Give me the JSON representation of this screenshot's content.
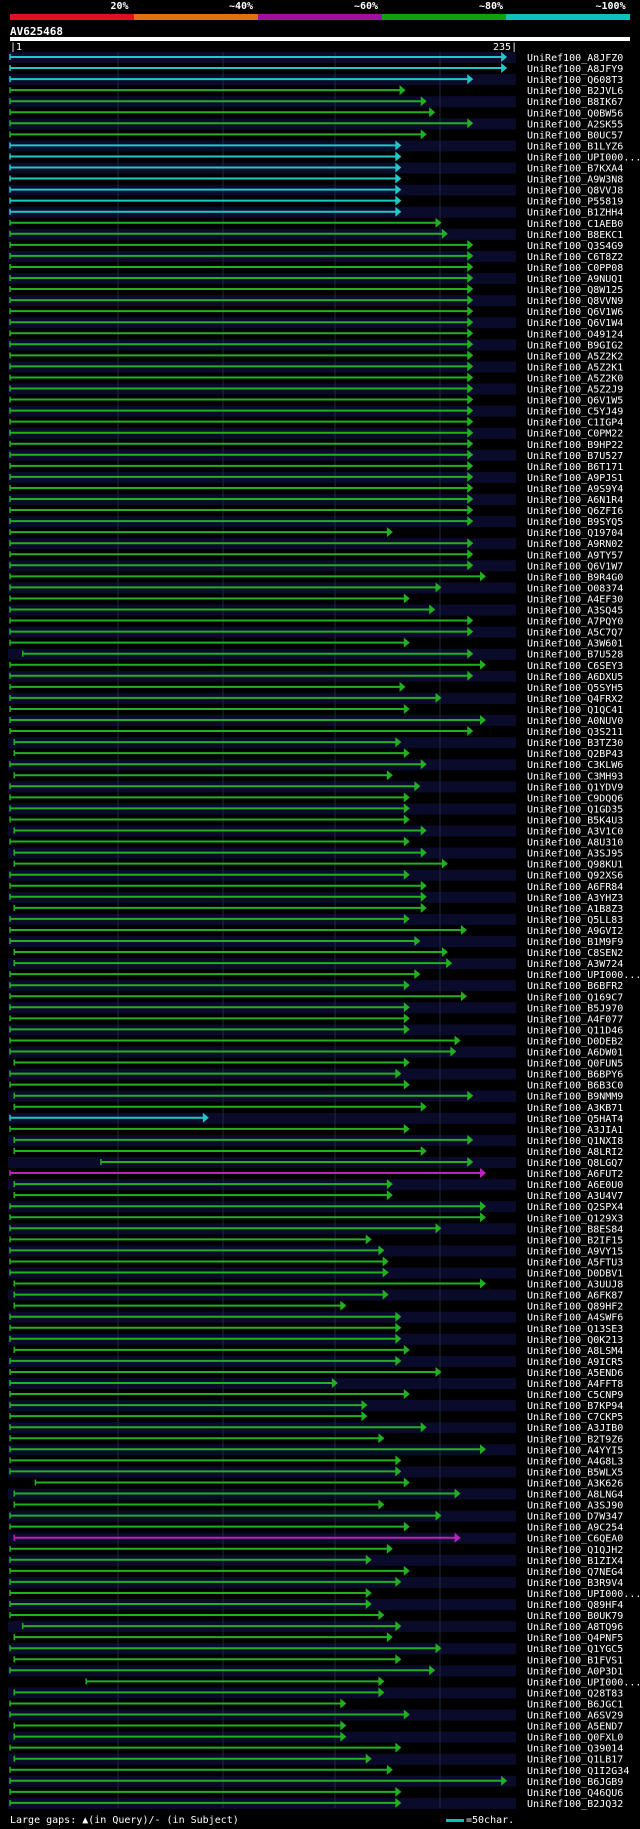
{
  "query": {
    "id": "AV625468",
    "start": "1",
    "end": "235"
  },
  "legend": [
    {
      "label": "20%",
      "color": "#e0101e"
    },
    {
      "label": "~40%",
      "color": "#e07010"
    },
    {
      "label": "~60%",
      "color": "#a0109a"
    },
    {
      "label": "~80%",
      "color": "#10a010"
    },
    {
      "label": "~100%",
      "color": "#10c0c0"
    }
  ],
  "colors": {
    "cyan": "#21c8c8",
    "green": "#22b022",
    "magenta": "#c020c0",
    "background": "#000000",
    "grid": "#1e2a3c",
    "row_stripe": "#0a0a2a"
  },
  "footer": {
    "gaps_text": "Large gaps: ▲(in Query)/- (in Subject)",
    "scale_text": "=50char."
  },
  "hits": [
    {
      "name": "UniRef100_A8JFZ0",
      "start": 1,
      "end": 236,
      "color": "cyan"
    },
    {
      "name": "UniRef100_A8JFY9",
      "start": 1,
      "end": 236,
      "color": "cyan"
    },
    {
      "name": "UniRef100_Q608T3",
      "start": 1,
      "end": 220,
      "color": "cyan"
    },
    {
      "name": "UniRef100_B2JVL6",
      "start": 1,
      "end": 188,
      "color": "green"
    },
    {
      "name": "UniRef100_B8IK67",
      "start": 1,
      "end": 198,
      "color": "green"
    },
    {
      "name": "UniRef100_Q0BW56",
      "start": 1,
      "end": 202,
      "color": "green"
    },
    {
      "name": "UniRef100_A2SK55",
      "start": 1,
      "end": 220,
      "color": "green"
    },
    {
      "name": "UniRef100_B0UC57",
      "start": 1,
      "end": 198,
      "color": "green"
    },
    {
      "name": "UniRef100_B1LYZ6",
      "start": 1,
      "end": 186,
      "color": "cyan"
    },
    {
      "name": "UniRef100_UPI000...",
      "start": 1,
      "end": 186,
      "color": "cyan"
    },
    {
      "name": "UniRef100_B7KXA4",
      "start": 1,
      "end": 186,
      "color": "cyan"
    },
    {
      "name": "UniRef100_A9W3N8",
      "start": 1,
      "end": 186,
      "color": "cyan"
    },
    {
      "name": "UniRef100_Q8VVJ8",
      "start": 1,
      "end": 186,
      "color": "cyan"
    },
    {
      "name": "UniRef100_P55819",
      "start": 1,
      "end": 186,
      "color": "cyan"
    },
    {
      "name": "UniRef100_B1ZHH4",
      "start": 1,
      "end": 186,
      "color": "cyan"
    },
    {
      "name": "UniRef100_C1AEB0",
      "start": 1,
      "end": 205,
      "color": "green"
    },
    {
      "name": "UniRef100_B8EKC1",
      "start": 1,
      "end": 208,
      "color": "green"
    },
    {
      "name": "UniRef100_Q3S4G9",
      "start": 1,
      "end": 220,
      "color": "green"
    },
    {
      "name": "UniRef100_C6T8Z2",
      "start": 1,
      "end": 220,
      "color": "green"
    },
    {
      "name": "UniRef100_C0PP08",
      "start": 1,
      "end": 220,
      "color": "green"
    },
    {
      "name": "UniRef100_A9NUQ1",
      "start": 1,
      "end": 220,
      "color": "green"
    },
    {
      "name": "UniRef100_Q8W125",
      "start": 1,
      "end": 220,
      "color": "green"
    },
    {
      "name": "UniRef100_Q8VVN9",
      "start": 1,
      "end": 220,
      "color": "green"
    },
    {
      "name": "UniRef100_Q6V1W6",
      "start": 1,
      "end": 220,
      "color": "green"
    },
    {
      "name": "UniRef100_Q6V1W4",
      "start": 1,
      "end": 220,
      "color": "green"
    },
    {
      "name": "UniRef100_O49124",
      "start": 1,
      "end": 220,
      "color": "green"
    },
    {
      "name": "UniRef100_B9GIG2",
      "start": 1,
      "end": 220,
      "color": "green"
    },
    {
      "name": "UniRef100_A5Z2K2",
      "start": 1,
      "end": 220,
      "color": "green"
    },
    {
      "name": "UniRef100_A5Z2K1",
      "start": 1,
      "end": 220,
      "color": "green"
    },
    {
      "name": "UniRef100_A5Z2K0",
      "start": 1,
      "end": 220,
      "color": "green"
    },
    {
      "name": "UniRef100_A5Z2J9",
      "start": 1,
      "end": 220,
      "color": "green"
    },
    {
      "name": "UniRef100_Q6V1W5",
      "start": 1,
      "end": 220,
      "color": "green"
    },
    {
      "name": "UniRef100_C5YJ49",
      "start": 1,
      "end": 220,
      "color": "green"
    },
    {
      "name": "UniRef100_C1IGP4",
      "start": 1,
      "end": 220,
      "color": "green"
    },
    {
      "name": "UniRef100_C0PM22",
      "start": 1,
      "end": 220,
      "color": "green"
    },
    {
      "name": "UniRef100_B9HP22",
      "start": 1,
      "end": 220,
      "color": "green"
    },
    {
      "name": "UniRef100_B7U527",
      "start": 1,
      "end": 220,
      "color": "green"
    },
    {
      "name": "UniRef100_B6T171",
      "start": 1,
      "end": 220,
      "color": "green"
    },
    {
      "name": "UniRef100_A9PJS1",
      "start": 1,
      "end": 220,
      "color": "green"
    },
    {
      "name": "UniRef100_A9S9Y4",
      "start": 1,
      "end": 220,
      "color": "green"
    },
    {
      "name": "UniRef100_A6N1R4",
      "start": 1,
      "end": 220,
      "color": "green"
    },
    {
      "name": "UniRef100_Q6ZFI6",
      "start": 1,
      "end": 220,
      "color": "green"
    },
    {
      "name": "UniRef100_B9SYQ5",
      "start": 1,
      "end": 220,
      "color": "green"
    },
    {
      "name": "UniRef100_Q19704",
      "start": 1,
      "end": 182,
      "color": "green"
    },
    {
      "name": "UniRef100_A9RN02",
      "start": 1,
      "end": 220,
      "color": "green"
    },
    {
      "name": "UniRef100_A9TY57",
      "start": 1,
      "end": 220,
      "color": "green"
    },
    {
      "name": "UniRef100_Q6V1W7",
      "start": 1,
      "end": 220,
      "color": "green"
    },
    {
      "name": "UniRef100_B9R4G0",
      "start": 1,
      "end": 226,
      "color": "green"
    },
    {
      "name": "UniRef100_O08374",
      "start": 1,
      "end": 205,
      "color": "green"
    },
    {
      "name": "UniRef100_A4EF30",
      "start": 1,
      "end": 190,
      "color": "green"
    },
    {
      "name": "UniRef100_A3SQ45",
      "start": 1,
      "end": 202,
      "color": "green"
    },
    {
      "name": "UniRef100_A7PQY0",
      "start": 1,
      "end": 220,
      "color": "green"
    },
    {
      "name": "UniRef100_A5C7Q7",
      "start": 1,
      "end": 220,
      "color": "green"
    },
    {
      "name": "UniRef100_A3W601",
      "start": 1,
      "end": 190,
      "color": "green"
    },
    {
      "name": "UniRef100_B7U528",
      "start": 7,
      "end": 220,
      "color": "green"
    },
    {
      "name": "UniRef100_C6SEY3",
      "start": 1,
      "end": 226,
      "color": "green"
    },
    {
      "name": "UniRef100_A6DXU5",
      "start": 1,
      "end": 220,
      "color": "green"
    },
    {
      "name": "UniRef100_Q5SYH5",
      "start": 1,
      "end": 188,
      "color": "green"
    },
    {
      "name": "UniRef100_Q4FRX2",
      "start": 1,
      "end": 205,
      "color": "green"
    },
    {
      "name": "UniRef100_Q1QC41",
      "start": 1,
      "end": 190,
      "color": "green"
    },
    {
      "name": "UniRef100_A0NUV0",
      "start": 1,
      "end": 226,
      "color": "green"
    },
    {
      "name": "UniRef100_Q3S211",
      "start": 1,
      "end": 220,
      "color": "green"
    },
    {
      "name": "UniRef100_B3TZ30",
      "start": 3,
      "end": 186,
      "color": "green"
    },
    {
      "name": "UniRef100_Q2BP43",
      "start": 3,
      "end": 190,
      "color": "green"
    },
    {
      "name": "UniRef100_C3KLW6",
      "start": 1,
      "end": 198,
      "color": "green"
    },
    {
      "name": "UniRef100_C3MH93",
      "start": 3,
      "end": 182,
      "color": "green"
    },
    {
      "name": "UniRef100_Q1YDV9",
      "start": 1,
      "end": 195,
      "color": "green"
    },
    {
      "name": "UniRef100_C9DQQ6",
      "start": 1,
      "end": 190,
      "color": "green"
    },
    {
      "name": "UniRef100_Q1GD35",
      "start": 1,
      "end": 190,
      "color": "green"
    },
    {
      "name": "UniRef100_B5K4U3",
      "start": 1,
      "end": 190,
      "color": "green"
    },
    {
      "name": "UniRef100_A3V1C0",
      "start": 3,
      "end": 198,
      "color": "green"
    },
    {
      "name": "UniRef100_A8U310",
      "start": 1,
      "end": 190,
      "color": "green"
    },
    {
      "name": "UniRef100_A3SJ95",
      "start": 3,
      "end": 198,
      "color": "green"
    },
    {
      "name": "UniRef100_Q98KU1",
      "start": 3,
      "end": 208,
      "color": "green"
    },
    {
      "name": "UniRef100_Q92XS6",
      "start": 1,
      "end": 190,
      "color": "green"
    },
    {
      "name": "UniRef100_A6FR84",
      "start": 1,
      "end": 198,
      "color": "green"
    },
    {
      "name": "UniRef100_A3YHZ3",
      "start": 1,
      "end": 198,
      "color": "green"
    },
    {
      "name": "UniRef100_A1B8Z3",
      "start": 3,
      "end": 198,
      "color": "green"
    },
    {
      "name": "UniRef100_Q5LL83",
      "start": 1,
      "end": 190,
      "color": "green"
    },
    {
      "name": "UniRef100_A9GVI2",
      "start": 1,
      "end": 217,
      "color": "green"
    },
    {
      "name": "UniRef100_B1M9F9",
      "start": 1,
      "end": 195,
      "color": "green"
    },
    {
      "name": "UniRef100_C8SEN2",
      "start": 3,
      "end": 208,
      "color": "green"
    },
    {
      "name": "UniRef100_A3W724",
      "start": 3,
      "end": 210,
      "color": "green"
    },
    {
      "name": "UniRef100_UPI000...",
      "start": 1,
      "end": 195,
      "color": "green"
    },
    {
      "name": "UniRef100_B6BFR2",
      "start": 1,
      "end": 190,
      "color": "green"
    },
    {
      "name": "UniRef100_Q169C7",
      "start": 1,
      "end": 217,
      "color": "green"
    },
    {
      "name": "UniRef100_B5J970",
      "start": 1,
      "end": 190,
      "color": "green"
    },
    {
      "name": "UniRef100_A4F077",
      "start": 1,
      "end": 190,
      "color": "green"
    },
    {
      "name": "UniRef100_Q11D46",
      "start": 1,
      "end": 190,
      "color": "green"
    },
    {
      "name": "UniRef100_D0DEB2",
      "start": 1,
      "end": 214,
      "color": "green"
    },
    {
      "name": "UniRef100_A6DW01",
      "start": 1,
      "end": 212,
      "color": "green"
    },
    {
      "name": "UniRef100_Q0FUN5",
      "start": 3,
      "end": 190,
      "color": "green"
    },
    {
      "name": "UniRef100_B6BPY6",
      "start": 1,
      "end": 186,
      "color": "green"
    },
    {
      "name": "UniRef100_B6B3C0",
      "start": 1,
      "end": 190,
      "color": "green"
    },
    {
      "name": "UniRef100_B9NMM9",
      "start": 3,
      "end": 220,
      "color": "green"
    },
    {
      "name": "UniRef100_A3KB71",
      "start": 3,
      "end": 198,
      "color": "green"
    },
    {
      "name": "UniRef100_Q5HAT4",
      "start": 1,
      "end": 95,
      "color": "cyan"
    },
    {
      "name": "UniRef100_A3JIA1",
      "start": 1,
      "end": 190,
      "color": "green"
    },
    {
      "name": "UniRef100_Q1NXI8",
      "start": 3,
      "end": 220,
      "color": "green"
    },
    {
      "name": "UniRef100_A8LRI2",
      "start": 3,
      "end": 198,
      "color": "green"
    },
    {
      "name": "UniRef100_Q8LGQ7",
      "start": 44,
      "end": 220,
      "color": "green"
    },
    {
      "name": "UniRef100_A6FUT2",
      "start": 1,
      "end": 226,
      "color": "magenta"
    },
    {
      "name": "UniRef100_A6E0U0",
      "start": 3,
      "end": 182,
      "color": "green"
    },
    {
      "name": "UniRef100_A3U4V7",
      "start": 3,
      "end": 182,
      "color": "green"
    },
    {
      "name": "UniRef100_Q2SPX4",
      "start": 1,
      "end": 226,
      "color": "green"
    },
    {
      "name": "UniRef100_Q129X3",
      "start": 1,
      "end": 226,
      "color": "green"
    },
    {
      "name": "UniRef100_B8ES84",
      "start": 1,
      "end": 205,
      "color": "green"
    },
    {
      "name": "UniRef100_B2IF15",
      "start": 1,
      "end": 172,
      "color": "green"
    },
    {
      "name": "UniRef100_A9VY15",
      "start": 1,
      "end": 178,
      "color": "green"
    },
    {
      "name": "UniRef100_A5FTU3",
      "start": 1,
      "end": 180,
      "color": "green"
    },
    {
      "name": "UniRef100_D0DBV1",
      "start": 1,
      "end": 180,
      "color": "green"
    },
    {
      "name": "UniRef100_A3UUJ8",
      "start": 3,
      "end": 226,
      "color": "green"
    },
    {
      "name": "UniRef100_A6FK87",
      "start": 3,
      "end": 180,
      "color": "green"
    },
    {
      "name": "UniRef100_Q89HF2",
      "start": 3,
      "end": 160,
      "color": "green"
    },
    {
      "name": "UniRef100_A4SWF6",
      "start": 1,
      "end": 186,
      "color": "green"
    },
    {
      "name": "UniRef100_Q13SE3",
      "start": 1,
      "end": 186,
      "color": "green"
    },
    {
      "name": "UniRef100_Q0K213",
      "start": 1,
      "end": 186,
      "color": "green"
    },
    {
      "name": "UniRef100_A8LSM4",
      "start": 3,
      "end": 190,
      "color": "green"
    },
    {
      "name": "UniRef100_A9ICR5",
      "start": 1,
      "end": 186,
      "color": "green"
    },
    {
      "name": "UniRef100_A5END6",
      "start": 1,
      "end": 205,
      "color": "green"
    },
    {
      "name": "UniRef100_A4FFT8",
      "start": 1,
      "end": 156,
      "color": "green"
    },
    {
      "name": "UniRef100_C5CNP9",
      "start": 1,
      "end": 190,
      "color": "green"
    },
    {
      "name": "UniRef100_B7KP94",
      "start": 1,
      "end": 170,
      "color": "green"
    },
    {
      "name": "UniRef100_C7CKP5",
      "start": 1,
      "end": 170,
      "color": "green"
    },
    {
      "name": "UniRef100_A3JIB0",
      "start": 1,
      "end": 198,
      "color": "green"
    },
    {
      "name": "UniRef100_B2T9Z6",
      "start": 1,
      "end": 178,
      "color": "green"
    },
    {
      "name": "UniRef100_A4YYI5",
      "start": 1,
      "end": 226,
      "color": "green"
    },
    {
      "name": "UniRef100_A4G8L3",
      "start": 1,
      "end": 186,
      "color": "green"
    },
    {
      "name": "UniRef100_B5WLX5",
      "start": 1,
      "end": 186,
      "color": "green"
    },
    {
      "name": "UniRef100_A3K626",
      "start": 13,
      "end": 190,
      "color": "green"
    },
    {
      "name": "UniRef100_A8LNG4",
      "start": 3,
      "end": 214,
      "color": "green"
    },
    {
      "name": "UniRef100_A3SJ90",
      "start": 3,
      "end": 178,
      "color": "green"
    },
    {
      "name": "UniRef100_D7W347",
      "start": 1,
      "end": 205,
      "color": "green"
    },
    {
      "name": "UniRef100_A9C254",
      "start": 1,
      "end": 190,
      "color": "green"
    },
    {
      "name": "UniRef100_C6QEA0",
      "start": 3,
      "end": 214,
      "color": "magenta"
    },
    {
      "name": "UniRef100_Q1QJH2",
      "start": 1,
      "end": 182,
      "color": "green"
    },
    {
      "name": "UniRef100_B1ZIX4",
      "start": 1,
      "end": 172,
      "color": "green"
    },
    {
      "name": "UniRef100_Q7NEG4",
      "start": 1,
      "end": 190,
      "color": "green"
    },
    {
      "name": "UniRef100_B3R9V4",
      "start": 1,
      "end": 186,
      "color": "green"
    },
    {
      "name": "UniRef100_UPI000...",
      "start": 1,
      "end": 172,
      "color": "green"
    },
    {
      "name": "UniRef100_Q89HF4",
      "start": 1,
      "end": 172,
      "color": "green"
    },
    {
      "name": "UniRef100_B0UK79",
      "start": 1,
      "end": 178,
      "color": "green"
    },
    {
      "name": "UniRef100_A8TQ96",
      "start": 7,
      "end": 186,
      "color": "green"
    },
    {
      "name": "UniRef100_Q4PNF5",
      "start": 3,
      "end": 182,
      "color": "green"
    },
    {
      "name": "UniRef100_Q1YGC5",
      "start": 1,
      "end": 205,
      "color": "green"
    },
    {
      "name": "UniRef100_B1FVS1",
      "start": 3,
      "end": 186,
      "color": "green"
    },
    {
      "name": "UniRef100_A0P3D1",
      "start": 1,
      "end": 202,
      "color": "green"
    },
    {
      "name": "UniRef100_UPI000...",
      "start": 37,
      "end": 178,
      "color": "green"
    },
    {
      "name": "UniRef100_Q28T83",
      "start": 3,
      "end": 178,
      "color": "green"
    },
    {
      "name": "UniRef100_B6JGC1",
      "start": 1,
      "end": 160,
      "color": "green"
    },
    {
      "name": "UniRef100_A6SV29",
      "start": 1,
      "end": 190,
      "color": "green"
    },
    {
      "name": "UniRef100_A5END7",
      "start": 3,
      "end": 160,
      "color": "green"
    },
    {
      "name": "UniRef100_Q0FXL0",
      "start": 3,
      "end": 160,
      "color": "green"
    },
    {
      "name": "UniRef100_Q39014",
      "start": 1,
      "end": 186,
      "color": "green"
    },
    {
      "name": "UniRef100_Q1LB17",
      "start": 3,
      "end": 172,
      "color": "green"
    },
    {
      "name": "UniRef100_Q1I2G34",
      "start": 1,
      "end": 182,
      "color": "green"
    },
    {
      "name": "UniRef100_B6JGB9",
      "start": 1,
      "end": 236,
      "color": "green"
    },
    {
      "name": "UniRef100_Q46QU6",
      "start": 1,
      "end": 186,
      "color": "green"
    },
    {
      "name": "UniRef100_B2JQ32",
      "start": 1,
      "end": 186,
      "color": "green"
    }
  ]
}
